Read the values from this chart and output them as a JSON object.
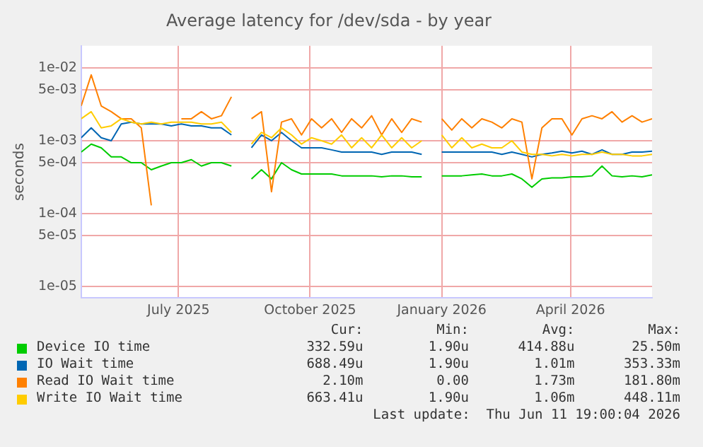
{
  "chart_data": {
    "type": "line",
    "title": "Average latency for /dev/sda - by year",
    "ylabel": "seconds",
    "log": "y",
    "grid": true,
    "legend": "bottom",
    "marker": "none",
    "line_style": "solid",
    "ylim": [
      7e-06,
      0.02
    ],
    "yticks": [
      {
        "value": 0.01,
        "label": "1e-02"
      },
      {
        "value": 0.005,
        "label": "5e-03"
      },
      {
        "value": 0.001,
        "label": "1e-03"
      },
      {
        "value": 0.0005,
        "label": "5e-04"
      },
      {
        "value": 0.0001,
        "label": "1e-04"
      },
      {
        "value": 5e-05,
        "label": "5e-05"
      },
      {
        "value": 1e-05,
        "label": "1e-05"
      }
    ],
    "xlim": [
      "2025-04-24",
      "2026-05-28"
    ],
    "xticks": [
      {
        "value": "2025-07-01",
        "label": "July 2025"
      },
      {
        "value": "2025-10-01",
        "label": "October 2025"
      },
      {
        "value": "2026-01-01",
        "label": "January 2026"
      },
      {
        "value": "2026-04-01",
        "label": "April 2026"
      }
    ],
    "x": [
      "2025-04-24",
      "2025-05-01",
      "2025-05-08",
      "2025-05-15",
      "2025-05-22",
      "2025-05-29",
      "2025-06-05",
      "2025-06-12",
      "2025-06-19",
      "2025-06-26",
      "2025-07-03",
      "2025-07-10",
      "2025-07-17",
      "2025-07-24",
      "2025-07-31",
      "2025-08-07",
      "2025-08-14",
      "2025-08-21",
      "2025-08-28",
      "2025-09-04",
      "2025-09-11",
      "2025-09-18",
      "2025-09-25",
      "2025-10-02",
      "2025-10-09",
      "2025-10-16",
      "2025-10-23",
      "2025-10-30",
      "2025-11-06",
      "2025-11-13",
      "2025-11-20",
      "2025-11-27",
      "2025-12-04",
      "2025-12-11",
      "2025-12-18",
      "2025-12-25",
      "2026-01-01",
      "2026-01-08",
      "2026-01-15",
      "2026-01-22",
      "2026-01-29",
      "2026-02-05",
      "2026-02-12",
      "2026-02-19",
      "2026-02-26",
      "2026-03-05",
      "2026-03-12",
      "2026-03-19",
      "2026-03-26",
      "2026-04-02",
      "2026-04-09",
      "2026-04-16",
      "2026-04-23",
      "2026-04-30",
      "2026-05-07",
      "2026-05-14",
      "2026-05-21",
      "2026-05-28"
    ],
    "series": [
      {
        "name": "Device IO time",
        "color": "#00cc00",
        "values": [
          0.0007,
          0.0009,
          0.0008,
          0.0006,
          0.0006,
          0.0005,
          0.0005,
          0.0004,
          0.00045,
          0.0005,
          0.0005,
          0.00055,
          0.00045,
          0.0005,
          0.0005,
          0.00045,
          null,
          0.0003,
          0.0004,
          0.0003,
          0.0005,
          0.0004,
          0.00035,
          0.00035,
          0.00035,
          0.00035,
          0.00033,
          0.00033,
          0.00033,
          0.00033,
          0.00032,
          0.00033,
          0.00033,
          0.00032,
          0.00032,
          null,
          0.00033,
          0.00033,
          0.00033,
          0.00034,
          0.00035,
          0.00033,
          0.00033,
          0.00035,
          0.0003,
          0.00023,
          0.0003,
          0.00031,
          0.00031,
          0.00032,
          0.00032,
          0.00033,
          0.00045,
          0.00033,
          0.00032,
          0.00033,
          0.00032,
          0.00034
        ]
      },
      {
        "name": "IO Wait time",
        "color": "#0066b3",
        "values": [
          0.0011,
          0.0015,
          0.0011,
          0.001,
          0.0017,
          0.0018,
          0.0017,
          0.0017,
          0.0017,
          0.0016,
          0.0017,
          0.0016,
          0.0016,
          0.0015,
          0.0015,
          0.0012,
          null,
          0.0008,
          0.0012,
          0.001,
          0.0013,
          0.001,
          0.0008,
          0.0008,
          0.0008,
          0.00075,
          0.0007,
          0.0007,
          0.0007,
          0.0007,
          0.00065,
          0.0007,
          0.0007,
          0.0007,
          0.00065,
          null,
          0.0007,
          0.0007,
          0.0007,
          0.0007,
          0.0007,
          0.0007,
          0.00065,
          0.0007,
          0.00065,
          0.0006,
          0.00065,
          0.00068,
          0.00072,
          0.00068,
          0.00072,
          0.00065,
          0.00075,
          0.00065,
          0.00065,
          0.0007,
          0.0007,
          0.00072
        ]
      },
      {
        "name": "Read IO Wait time",
        "color": "#ff8000",
        "values": [
          0.003,
          0.008,
          0.003,
          0.0025,
          0.002,
          0.002,
          0.0015,
          0.00013,
          null,
          null,
          0.002,
          0.002,
          0.0025,
          0.002,
          0.0022,
          0.004,
          null,
          0.002,
          0.0025,
          0.0002,
          0.0018,
          0.002,
          0.0012,
          0.002,
          0.0015,
          0.002,
          0.0013,
          0.002,
          0.0015,
          0.0022,
          0.0012,
          0.002,
          0.0013,
          0.002,
          0.0018,
          null,
          0.002,
          0.0014,
          0.002,
          0.0015,
          0.002,
          0.0018,
          0.0015,
          0.002,
          0.0018,
          0.0003,
          0.0015,
          0.002,
          0.002,
          0.0012,
          0.002,
          0.0022,
          0.002,
          0.0025,
          0.0018,
          0.0022,
          0.0018,
          0.002
        ]
      },
      {
        "name": "Write IO Wait time",
        "color": "#ffcc00",
        "values": [
          0.002,
          0.0025,
          0.0015,
          0.0016,
          0.002,
          0.0018,
          0.0017,
          0.0018,
          0.0017,
          0.0018,
          0.0018,
          0.0018,
          0.0017,
          0.0017,
          0.0018,
          0.0013,
          null,
          0.0009,
          0.0013,
          0.0011,
          0.0015,
          0.0012,
          0.0009,
          0.0011,
          0.001,
          0.0009,
          0.0012,
          0.0008,
          0.0011,
          0.0008,
          0.0012,
          0.0008,
          0.0011,
          0.0008,
          0.001,
          null,
          0.0012,
          0.0008,
          0.0011,
          0.0008,
          0.0009,
          0.0008,
          0.0008,
          0.001,
          0.0007,
          0.00065,
          0.00065,
          0.00062,
          0.00065,
          0.00062,
          0.00065,
          0.00065,
          0.0007,
          0.00065,
          0.00065,
          0.00062,
          0.00062,
          0.00065
        ]
      }
    ],
    "annotations": [
      "Cur:",
      "Min:",
      "Avg:",
      "Max:",
      "332.59u",
      "1.90u",
      "414.88u",
      "25.50m",
      "688.49u",
      "1.90u",
      "1.01m",
      "353.33m",
      "2.10m",
      "0.00",
      "1.73m",
      "181.80m",
      "663.41u",
      "1.90u",
      "1.06m",
      "448.11m",
      "Last update:  Thu Jun 11 19:00:04 2026"
    ]
  }
}
